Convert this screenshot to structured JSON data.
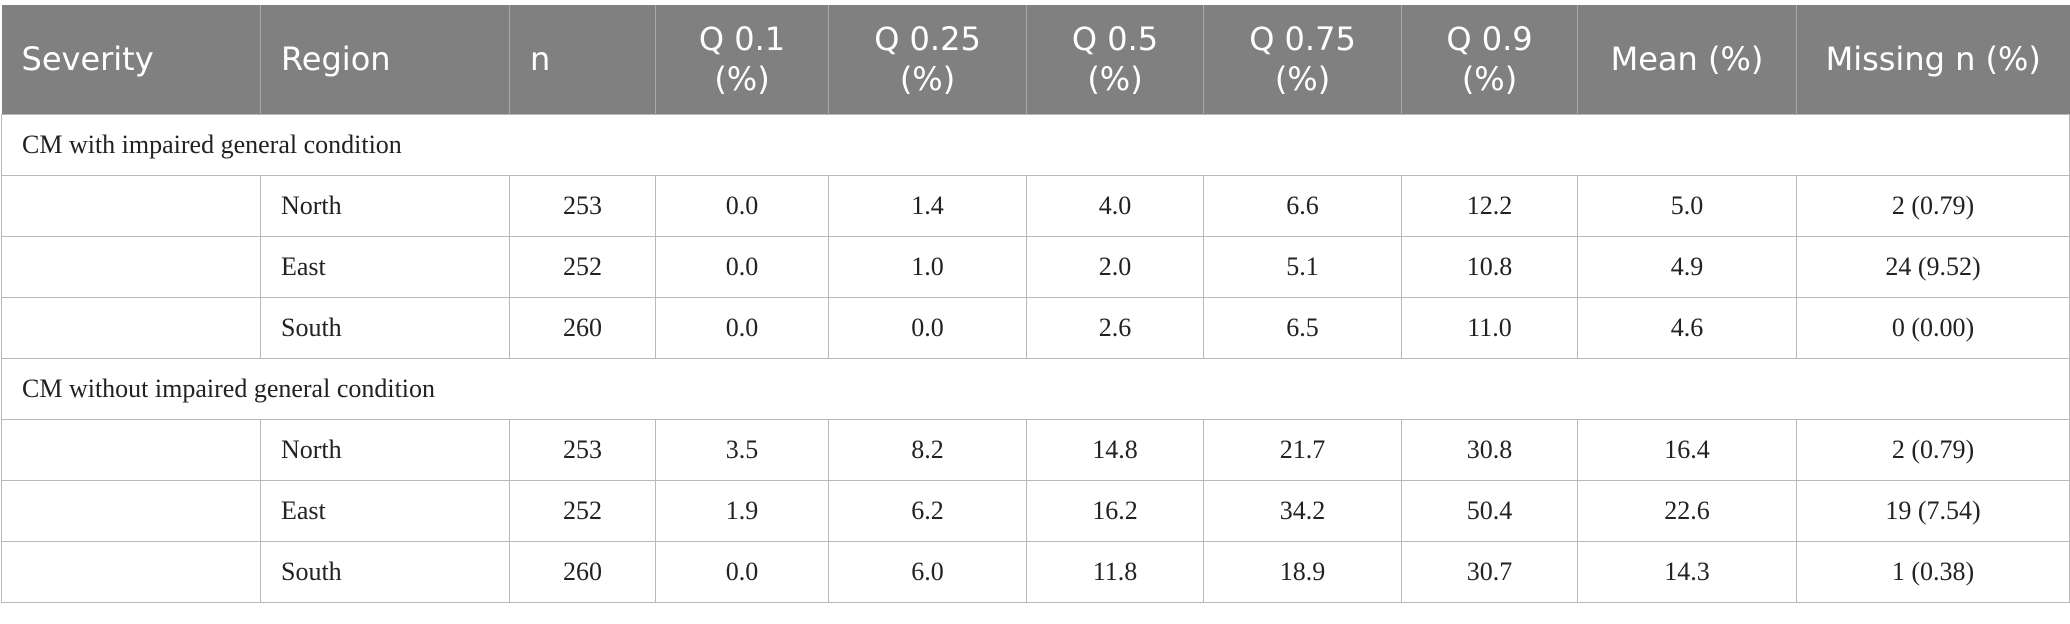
{
  "table": {
    "headers": [
      "Severity",
      "Region",
      "n",
      "Q 0.1\n(%)",
      "Q 0.25\n(%)",
      "Q 0.5\n(%)",
      "Q 0.75\n(%)",
      "Q 0.9\n(%)",
      "Mean (%)",
      "Missing n (%)"
    ],
    "groups": [
      {
        "label": "CM with impaired general condition",
        "rows": [
          [
            "",
            "North",
            "253",
            "0.0",
            "1.4",
            "4.0",
            "6.6",
            "12.2",
            "5.0",
            "2 (0.79)"
          ],
          [
            "",
            "East",
            "252",
            "0.0",
            "1.0",
            "2.0",
            "5.1",
            "10.8",
            "4.9",
            "24 (9.52)"
          ],
          [
            "",
            "South",
            "260",
            "0.0",
            "0.0",
            "2.6",
            "6.5",
            "11.0",
            "4.6",
            "0 (0.00)"
          ]
        ]
      },
      {
        "label": "CM without impaired general condition",
        "rows": [
          [
            "",
            "North",
            "253",
            "3.5",
            "8.2",
            "14.8",
            "21.7",
            "30.8",
            "16.4",
            "2 (0.79)"
          ],
          [
            "",
            "East",
            "252",
            "1.9",
            "6.2",
            "16.2",
            "34.2",
            "50.4",
            "22.6",
            "19 (7.54)"
          ],
          [
            "",
            "South",
            "260",
            "0.0",
            "6.0",
            "11.8",
            "18.9",
            "30.7",
            "14.3",
            "1 (0.38)"
          ]
        ]
      }
    ]
  }
}
